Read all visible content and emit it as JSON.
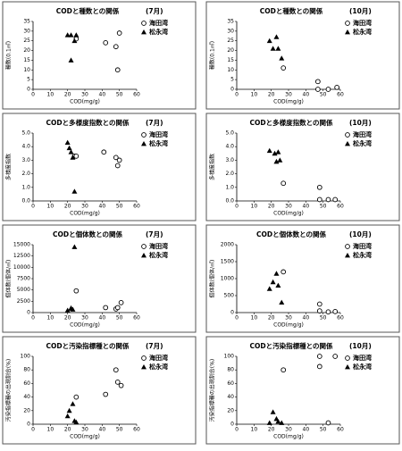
{
  "chart_data": [
    {
      "type": "scatter",
      "title": "CODと種数との関係",
      "subtitle": "(7月)",
      "xlabel": "COD(mg/g)",
      "ylabel": "種数(0.1㎡)",
      "xlim": [
        0,
        60
      ],
      "xticks": [
        0,
        10,
        20,
        30,
        40,
        50,
        60
      ],
      "ylim": [
        0,
        35
      ],
      "yticks": [
        0,
        5,
        10,
        15,
        20,
        25,
        30,
        35
      ],
      "series": [
        {
          "name": "海田湾",
          "marker": "circle",
          "color": "#000000",
          "x": [
            25,
            42,
            48,
            50,
            49
          ],
          "values": [
            26,
            24,
            22,
            29,
            10
          ]
        },
        {
          "name": "松永湾",
          "marker": "triangle",
          "color": "#000000",
          "x": [
            20,
            22,
            25,
            22,
            24
          ],
          "values": [
            28,
            28,
            28,
            15,
            25
          ]
        }
      ]
    },
    {
      "type": "scatter",
      "title": "CODと種数との関係",
      "subtitle": "(10月)",
      "xlabel": "COD(mg/g)",
      "ylabel": "種数(0.1㎡)",
      "xlim": [
        0,
        60
      ],
      "xticks": [
        0,
        10,
        20,
        30,
        40,
        50,
        60
      ],
      "ylim": [
        0,
        35
      ],
      "yticks": [
        0,
        5,
        10,
        15,
        20,
        25,
        30,
        35
      ],
      "series": [
        {
          "name": "海田湾",
          "marker": "circle",
          "color": "#000000",
          "x": [
            27,
            47,
            47,
            53,
            58
          ],
          "values": [
            11,
            4,
            0,
            0,
            1
          ]
        },
        {
          "name": "松永湾",
          "marker": "triangle",
          "color": "#000000",
          "x": [
            19,
            21,
            23,
            24,
            26
          ],
          "values": [
            25,
            21,
            27,
            21,
            16
          ]
        }
      ]
    },
    {
      "type": "scatter",
      "title": "CODと多様度指数との関係",
      "subtitle": "(7月)",
      "xlabel": "COD(mg/g)",
      "ylabel": "多様度指数",
      "xlim": [
        0,
        60
      ],
      "xticks": [
        0,
        10,
        20,
        30,
        40,
        50,
        60
      ],
      "ylim": [
        0,
        5
      ],
      "yticks": [
        {
          "value": 0,
          "label": "0.0"
        },
        {
          "value": 1,
          "label": "1.0"
        },
        {
          "value": 2,
          "label": "2.0"
        },
        {
          "value": 3,
          "label": "3.0"
        },
        {
          "value": 4,
          "label": "4.0"
        },
        {
          "value": 5,
          "label": "5.0"
        }
      ],
      "series": [
        {
          "name": "海田湾",
          "marker": "circle",
          "color": "#000000",
          "x": [
            24,
            25,
            41,
            48,
            49,
            50
          ],
          "values": [
            3.3,
            3.3,
            3.6,
            3.2,
            2.6,
            3.0
          ]
        },
        {
          "name": "松永湾",
          "marker": "triangle",
          "color": "#000000",
          "x": [
            20,
            21,
            22,
            23,
            24
          ],
          "values": [
            4.3,
            3.9,
            3.6,
            3.2,
            0.7
          ]
        }
      ]
    },
    {
      "type": "scatter",
      "title": "CODと多様度指数との関係",
      "subtitle": "(10月)",
      "xlabel": "COD(mg/g)",
      "ylabel": "多様度指数",
      "xlim": [
        0,
        60
      ],
      "xticks": [
        0,
        10,
        20,
        30,
        40,
        50,
        60
      ],
      "ylim": [
        0,
        5
      ],
      "yticks": [
        {
          "value": 0,
          "label": "0.0"
        },
        {
          "value": 1,
          "label": "1.0"
        },
        {
          "value": 2,
          "label": "2.0"
        },
        {
          "value": 3,
          "label": "3.0"
        },
        {
          "value": 4,
          "label": "4.0"
        },
        {
          "value": 5,
          "label": "5.0"
        }
      ],
      "series": [
        {
          "name": "海田湾",
          "marker": "circle",
          "color": "#000000",
          "x": [
            27,
            48,
            48,
            53,
            57
          ],
          "values": [
            1.3,
            1.0,
            0.1,
            0.1,
            0.1
          ]
        },
        {
          "name": "松永湾",
          "marker": "triangle",
          "color": "#000000",
          "x": [
            19,
            22,
            23,
            24,
            25
          ],
          "values": [
            3.7,
            3.5,
            2.9,
            3.6,
            3.0
          ]
        }
      ]
    },
    {
      "type": "scatter",
      "title": "CODと個体数との関係",
      "subtitle": "(7月)",
      "xlabel": "COD(mg/g)",
      "ylabel": "個体数(個体/㎡)",
      "xlim": [
        0,
        60
      ],
      "xticks": [
        0,
        10,
        20,
        30,
        40,
        50,
        60
      ],
      "ylim": [
        0,
        15000
      ],
      "yticks": [
        0,
        2500,
        5000,
        7500,
        10000,
        12500,
        15000
      ],
      "series": [
        {
          "name": "海田湾",
          "marker": "circle",
          "color": "#000000",
          "x": [
            25,
            42,
            48,
            49,
            51
          ],
          "values": [
            4800,
            1100,
            800,
            1100,
            2200
          ]
        },
        {
          "name": "松永湾",
          "marker": "triangle",
          "color": "#000000",
          "x": [
            20,
            22,
            22,
            23,
            24
          ],
          "values": [
            500,
            900,
            1000,
            700,
            14500
          ]
        }
      ]
    },
    {
      "type": "scatter",
      "title": "CODと個体数との関係",
      "subtitle": "(10月)",
      "xlabel": "COD(mg/g)",
      "ylabel": "個体数(個体/㎡)",
      "xlim": [
        0,
        60
      ],
      "xticks": [
        0,
        10,
        20,
        30,
        40,
        50,
        60
      ],
      "ylim": [
        0,
        2000
      ],
      "yticks": [
        0,
        500,
        1000,
        1500,
        2000
      ],
      "series": [
        {
          "name": "海田湾",
          "marker": "circle",
          "color": "#000000",
          "x": [
            27,
            48,
            48,
            53,
            57
          ],
          "values": [
            1200,
            250,
            50,
            20,
            30
          ]
        },
        {
          "name": "松永湾",
          "marker": "triangle",
          "color": "#000000",
          "x": [
            19,
            21,
            23,
            24,
            26
          ],
          "values": [
            700,
            900,
            1150,
            800,
            300
          ]
        }
      ]
    },
    {
      "type": "scatter",
      "title": "CODと汚染指標種との関係",
      "subtitle": "(7月)",
      "xlabel": "COD(mg/g)",
      "ylabel": "汚染指標種の出現割合(%)",
      "xlim": [
        0,
        60
      ],
      "xticks": [
        0,
        10,
        20,
        30,
        40,
        50,
        60
      ],
      "ylim": [
        0,
        100
      ],
      "yticks": [
        0,
        20,
        40,
        60,
        80,
        100
      ],
      "series": [
        {
          "name": "海田湾",
          "marker": "circle",
          "color": "#000000",
          "x": [
            25,
            42,
            48,
            49,
            51
          ],
          "values": [
            40,
            44,
            80,
            62,
            57
          ]
        },
        {
          "name": "松永湾",
          "marker": "triangle",
          "color": "#000000",
          "x": [
            20,
            21,
            23,
            24,
            25
          ],
          "values": [
            12,
            20,
            30,
            5,
            3
          ]
        }
      ]
    },
    {
      "type": "scatter",
      "title": "CODと汚染指標種との関係",
      "subtitle": "(10月)",
      "xlabel": "COD(mg/g)",
      "ylabel": "汚染指標種の出現割合(%)",
      "xlim": [
        0,
        60
      ],
      "xticks": [
        0,
        10,
        20,
        30,
        40,
        50,
        60
      ],
      "ylim": [
        0,
        100
      ],
      "yticks": [
        0,
        20,
        40,
        60,
        80,
        100
      ],
      "series": [
        {
          "name": "海田湾",
          "marker": "circle",
          "color": "#000000",
          "x": [
            27,
            48,
            48,
            53,
            57
          ],
          "values": [
            80,
            100,
            85,
            2,
            100
          ]
        },
        {
          "name": "松永湾",
          "marker": "triangle",
          "color": "#000000",
          "x": [
            19,
            21,
            23,
            24,
            26
          ],
          "values": [
            2,
            18,
            8,
            4,
            2
          ]
        }
      ]
    }
  ]
}
